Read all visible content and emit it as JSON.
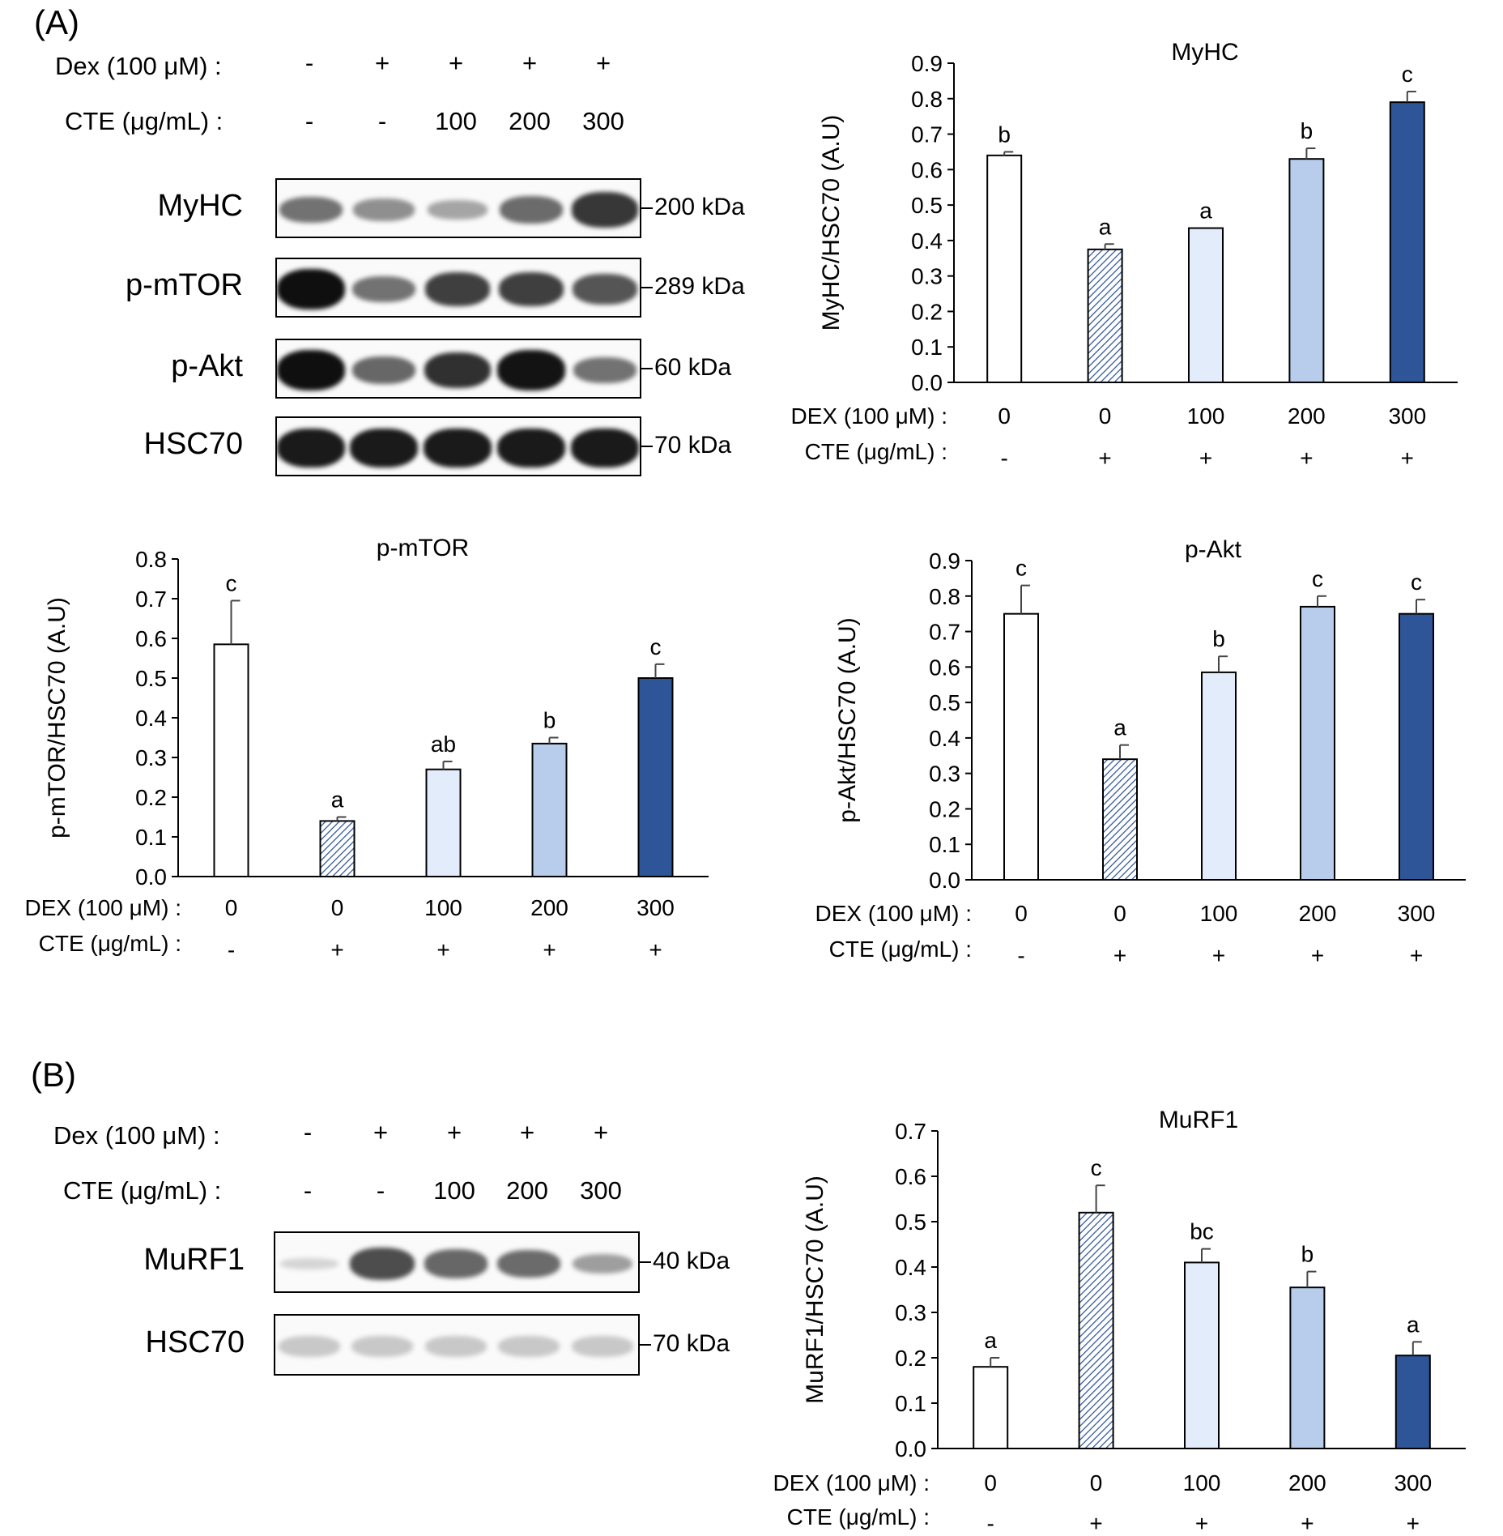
{
  "panelA": {
    "label": "(A)",
    "blot": {
      "dex_label": "Dex (100 μM)  :",
      "cte_label": "CTE (μg/mL)  :",
      "dex_values": [
        "-",
        "+",
        "+",
        "+",
        "+"
      ],
      "cte_values": [
        "-",
        "-",
        "100",
        "200",
        "300"
      ],
      "rows": [
        {
          "protein": "MyHC",
          "kda": "200 kDa",
          "intensity": [
            0.55,
            0.42,
            0.32,
            0.58,
            0.82
          ]
        },
        {
          "protein": "p-mTOR",
          "kda": "289 kDa",
          "intensity": [
            1.0,
            0.55,
            0.78,
            0.78,
            0.68
          ]
        },
        {
          "protein": "p-Akt",
          "kda": "60 kDa",
          "intensity": [
            1.0,
            0.6,
            0.85,
            0.98,
            0.55
          ]
        },
        {
          "protein": "HSC70",
          "kda": "70 kDa",
          "intensity": [
            0.95,
            0.95,
            0.95,
            0.95,
            0.95
          ]
        }
      ]
    }
  },
  "panelB": {
    "label": "(B)",
    "blot": {
      "dex_label": "Dex (100 μM)  :",
      "cte_label": "CTE (μg/mL)  :",
      "dex_values": [
        "-",
        "+",
        "+",
        "+",
        "+"
      ],
      "cte_values": [
        "-",
        "-",
        "100",
        "200",
        "300"
      ],
      "rows": [
        {
          "protein": "MuRF1",
          "kda": "40 kDa",
          "intensity": [
            0.1,
            0.72,
            0.6,
            0.58,
            0.35
          ]
        },
        {
          "protein": "HSC70",
          "kda": "70 kDa",
          "intensity": [
            0.4,
            0.4,
            0.4,
            0.4,
            0.4
          ]
        }
      ]
    }
  },
  "colors": [
    "#ffffff",
    "hatched",
    "#e3ecfa",
    "#b8cdec",
    "#2e5597"
  ],
  "chart_data": [
    {
      "type": "bar",
      "title": "MyHC",
      "ylabel": "MyHC/HSC70 (A.U)",
      "ylim": [
        0,
        0.9
      ],
      "yticks": [
        "0.0",
        "0.1",
        "0.2",
        "0.3",
        "0.4",
        "0.5",
        "0.6",
        "0.7",
        "0.8",
        "0.9"
      ],
      "row1_label": "DEX (100 μM) :",
      "row1": [
        "0",
        "0",
        "100",
        "200",
        "300"
      ],
      "row2_label": "CTE (μg/mL) :",
      "row2": [
        "-",
        "+",
        "+",
        "+",
        "+"
      ],
      "values": [
        0.64,
        0.375,
        0.435,
        0.63,
        0.79
      ],
      "errors": [
        0.01,
        0.015,
        0.0,
        0.03,
        0.03
      ],
      "letters": [
        "b",
        "a",
        "a",
        "b",
        "c"
      ]
    },
    {
      "type": "bar",
      "title": "p-mTOR",
      "ylabel": "p-mTOR/HSC70 (A.U)",
      "ylim": [
        0,
        0.8
      ],
      "yticks": [
        "0.0",
        "0.1",
        "0.2",
        "0.3",
        "0.4",
        "0.5",
        "0.6",
        "0.7",
        "0.8"
      ],
      "row1_label": "DEX (100 μM) :",
      "row1": [
        "0",
        "0",
        "100",
        "200",
        "300"
      ],
      "row2_label": "CTE (μg/mL) :",
      "row2": [
        "-",
        "+",
        "+",
        "+",
        "+"
      ],
      "values": [
        0.585,
        0.14,
        0.27,
        0.335,
        0.5
      ],
      "errors": [
        0.11,
        0.01,
        0.02,
        0.015,
        0.035
      ],
      "letters": [
        "c",
        "a",
        "ab",
        "b",
        "c"
      ]
    },
    {
      "type": "bar",
      "title": "p-Akt",
      "ylabel": "p-Akt/HSC70 (A.U)",
      "ylim": [
        0,
        0.9
      ],
      "yticks": [
        "0.0",
        "0.1",
        "0.2",
        "0.3",
        "0.4",
        "0.5",
        "0.6",
        "0.7",
        "0.8",
        "0.9"
      ],
      "row1_label": "DEX (100 μM) :",
      "row1": [
        "0",
        "0",
        "100",
        "200",
        "300"
      ],
      "row2_label": "CTE (μg/mL) :",
      "row2": [
        "-",
        "+",
        "+",
        "+",
        "+"
      ],
      "values": [
        0.75,
        0.34,
        0.585,
        0.77,
        0.75
      ],
      "errors": [
        0.08,
        0.04,
        0.045,
        0.03,
        0.04
      ],
      "letters": [
        "c",
        "a",
        "b",
        "c",
        "c"
      ]
    },
    {
      "type": "bar",
      "title": "MuRF1",
      "ylabel": "MuRF1/HSC70 (A.U)",
      "ylim": [
        0,
        0.7
      ],
      "yticks": [
        "0.0",
        "0.1",
        "0.2",
        "0.3",
        "0.4",
        "0.5",
        "0.6",
        "0.7"
      ],
      "row1_label": "DEX (100 μM) :",
      "row1": [
        "0",
        "0",
        "100",
        "200",
        "300"
      ],
      "row2_label": "CTE (μg/mL) :",
      "row2": [
        "-",
        "+",
        "+",
        "+",
        "+"
      ],
      "values": [
        0.18,
        0.52,
        0.41,
        0.355,
        0.205
      ],
      "errors": [
        0.02,
        0.06,
        0.03,
        0.035,
        0.03
      ],
      "letters": [
        "a",
        "c",
        "bc",
        "b",
        "a"
      ]
    }
  ]
}
